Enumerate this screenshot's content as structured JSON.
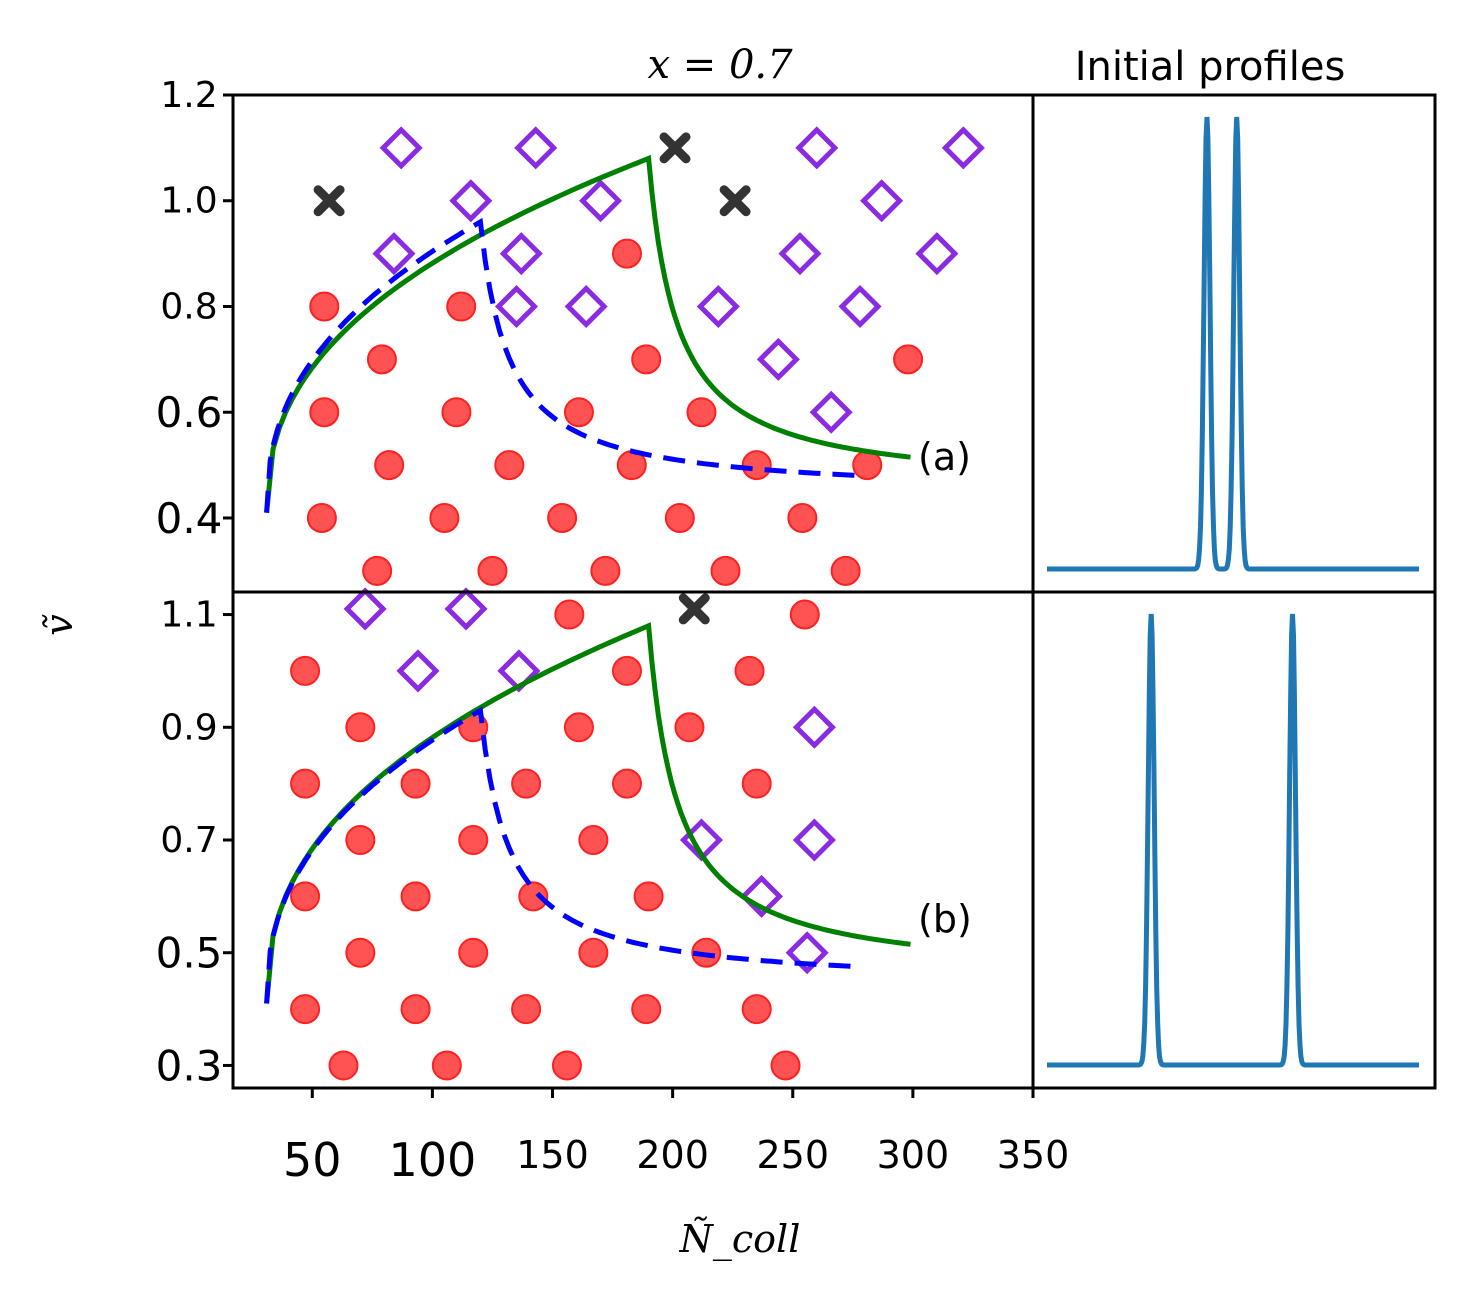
{
  "chart_data": {
    "type": "scatter",
    "title": "x = 0.7",
    "side_title": "Initial profiles",
    "xlabel": "Ñ_coll",
    "ylabel": "ṽ",
    "xlim": [
      17,
      350
    ],
    "x_ticks": [
      50,
      100,
      150,
      200,
      250,
      300,
      350
    ],
    "x_tick_labels": [
      "50",
      "100",
      "150",
      "200",
      "250",
      "300",
      "350"
    ],
    "colors": {
      "circle": "#ff3b3b",
      "diamond": "#8a2be2",
      "cross": "#333333",
      "solid_line": "#008000",
      "dashed_line": "#0000ff",
      "profile": "#1f77b4"
    },
    "panels": [
      {
        "label": "(a)",
        "ylim": [
          0.26,
          1.2
        ],
        "y_ticks": [
          0.4,
          0.6,
          0.8,
          1.0,
          1.2
        ],
        "y_tick_labels": [
          "0.4",
          "0.6",
          "0.8",
          "1.0",
          "1.2"
        ],
        "circles": [
          [
            55,
            0.8
          ],
          [
            112,
            0.8
          ],
          [
            79,
            0.7
          ],
          [
            55,
            0.6
          ],
          [
            110,
            0.6
          ],
          [
            181,
            0.9
          ],
          [
            189,
            0.7
          ],
          [
            161,
            0.6
          ],
          [
            298,
            0.7
          ],
          [
            82,
            0.5
          ],
          [
            132,
            0.5
          ],
          [
            183,
            0.5
          ],
          [
            212,
            0.6
          ],
          [
            235,
            0.5
          ],
          [
            281,
            0.5
          ],
          [
            54,
            0.4
          ],
          [
            105,
            0.4
          ],
          [
            154,
            0.4
          ],
          [
            203,
            0.4
          ],
          [
            254,
            0.4
          ],
          [
            77,
            0.3
          ],
          [
            125,
            0.3
          ],
          [
            172,
            0.3
          ],
          [
            222,
            0.3
          ],
          [
            272,
            0.3
          ]
        ],
        "diamonds": [
          [
            87,
            1.1
          ],
          [
            143,
            1.1
          ],
          [
            260,
            1.1
          ],
          [
            321,
            1.1
          ],
          [
            116,
            1.0
          ],
          [
            170,
            1.0
          ],
          [
            287,
            1.0
          ],
          [
            84,
            0.9
          ],
          [
            137,
            0.9
          ],
          [
            253,
            0.9
          ],
          [
            310,
            0.9
          ],
          [
            135,
            0.8
          ],
          [
            164,
            0.8
          ],
          [
            219,
            0.8
          ],
          [
            278,
            0.8
          ],
          [
            244,
            0.7
          ],
          [
            266,
            0.6
          ]
        ],
        "crosses": [
          [
            57,
            1.0
          ],
          [
            201,
            1.1
          ],
          [
            226,
            1.0
          ]
        ],
        "solid_line": {
          "peak": [
            190,
            1.08
          ],
          "start": [
            31,
            0.41
          ],
          "end": [
            299,
            0.515
          ]
        },
        "dashed_line": {
          "peak": [
            120,
            0.96
          ],
          "start": [
            31,
            0.41
          ],
          "end": [
            279,
            0.48
          ]
        },
        "profile": {
          "peaks": [
            0.43,
            0.51
          ],
          "width": 0.008
        }
      },
      {
        "label": "(b)",
        "ylim": [
          0.26,
          1.14
        ],
        "y_ticks": [
          0.3,
          0.5,
          0.7,
          0.9,
          1.1
        ],
        "y_tick_labels": [
          "0.3",
          "0.5",
          "0.7",
          "0.9",
          "1.1"
        ],
        "circles": [
          [
            47,
            1.0
          ],
          [
            157,
            1.1
          ],
          [
            255,
            1.1
          ],
          [
            181,
            1.0
          ],
          [
            232,
            1.0
          ],
          [
            70,
            0.9
          ],
          [
            117,
            0.9
          ],
          [
            161,
            0.9
          ],
          [
            207,
            0.9
          ],
          [
            47,
            0.8
          ],
          [
            93,
            0.8
          ],
          [
            139,
            0.8
          ],
          [
            181,
            0.8
          ],
          [
            235,
            0.8
          ],
          [
            70,
            0.7
          ],
          [
            117,
            0.7
          ],
          [
            167,
            0.7
          ],
          [
            47,
            0.6
          ],
          [
            93,
            0.6
          ],
          [
            142,
            0.6
          ],
          [
            190,
            0.6
          ],
          [
            70,
            0.5
          ],
          [
            117,
            0.5
          ],
          [
            167,
            0.5
          ],
          [
            214,
            0.5
          ],
          [
            47,
            0.4
          ],
          [
            93,
            0.4
          ],
          [
            139,
            0.4
          ],
          [
            189,
            0.4
          ],
          [
            235,
            0.4
          ],
          [
            63,
            0.3
          ],
          [
            106,
            0.3
          ],
          [
            156,
            0.3
          ],
          [
            247,
            0.3
          ]
        ],
        "diamonds": [
          [
            72,
            1.11
          ],
          [
            114,
            1.11
          ],
          [
            94,
            1.0
          ],
          [
            136,
            1.0
          ],
          [
            259,
            0.9
          ],
          [
            212,
            0.7
          ],
          [
            259,
            0.7
          ],
          [
            237,
            0.6
          ],
          [
            256,
            0.5
          ]
        ],
        "crosses": [
          [
            209,
            1.11
          ]
        ],
        "solid_line": {
          "peak": [
            190,
            1.08
          ],
          "start": [
            31,
            0.41
          ],
          "end": [
            299,
            0.515
          ]
        },
        "dashed_line": {
          "peak": [
            120,
            0.93
          ],
          "start": [
            31,
            0.41
          ],
          "end": [
            279,
            0.475
          ]
        },
        "profile": {
          "peaks": [
            0.28,
            0.66
          ],
          "width": 0.008
        }
      }
    ]
  }
}
